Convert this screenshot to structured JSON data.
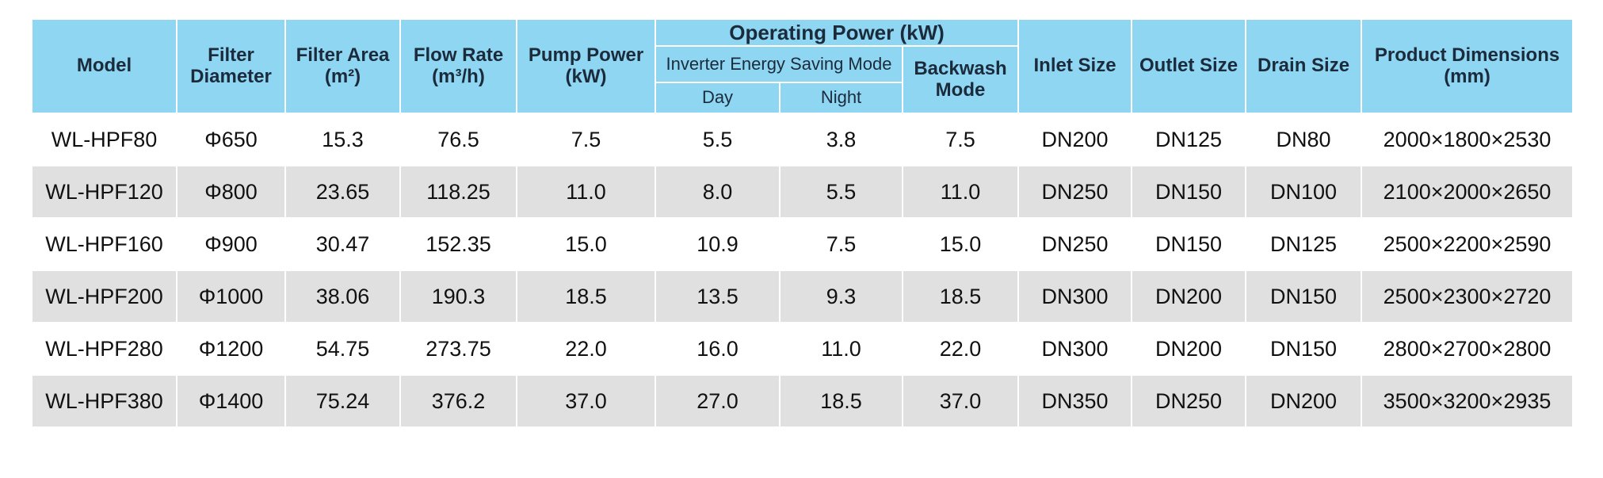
{
  "table": {
    "header": {
      "model": "Model",
      "filter_diameter": "Filter Diameter",
      "filter_area": "Filter Area (m²)",
      "flow_rate": "Flow Rate (m³/h)",
      "pump_power": "Pump Power (kW)",
      "operating_power": "Operating Power  (kW)",
      "inverter_mode": "Inverter Energy Saving Mode",
      "day": "Day",
      "night": "Night",
      "backwash_mode": "Backwash Mode",
      "inlet_size": "Inlet Size",
      "outlet_size": "Outlet Size",
      "drain_size": "Drain Size",
      "product_dimensions": "Product Dimensions (mm)"
    },
    "rows": [
      [
        "WL-HPF80",
        "Φ650",
        "15.3",
        "76.5",
        "7.5",
        "5.5",
        "3.8",
        "7.5",
        "DN200",
        "DN125",
        "DN80",
        "2000×1800×2530"
      ],
      [
        "WL-HPF120",
        "Φ800",
        "23.65",
        "118.25",
        "11.0",
        "8.0",
        "5.5",
        "11.0",
        "DN250",
        "DN150",
        "DN100",
        "2100×2000×2650"
      ],
      [
        "WL-HPF160",
        "Φ900",
        "30.47",
        "152.35",
        "15.0",
        "10.9",
        "7.5",
        "15.0",
        "DN250",
        "DN150",
        "DN125",
        "2500×2200×2590"
      ],
      [
        "WL-HPF200",
        "Φ1000",
        "38.06",
        "190.3",
        "18.5",
        "13.5",
        "9.3",
        "18.5",
        "DN300",
        "DN200",
        "DN150",
        "2500×2300×2720"
      ],
      [
        "WL-HPF280",
        "Φ1200",
        "54.75",
        "273.75",
        "22.0",
        "16.0",
        "11.0",
        "22.0",
        "DN300",
        "DN200",
        "DN150",
        "2800×2700×2800"
      ],
      [
        "WL-HPF380",
        "Φ1400",
        "75.24",
        "376.2",
        "37.0",
        "27.0",
        "18.5",
        "37.0",
        "DN350",
        "DN250",
        "DN200",
        "3500×3200×2935"
      ]
    ]
  }
}
